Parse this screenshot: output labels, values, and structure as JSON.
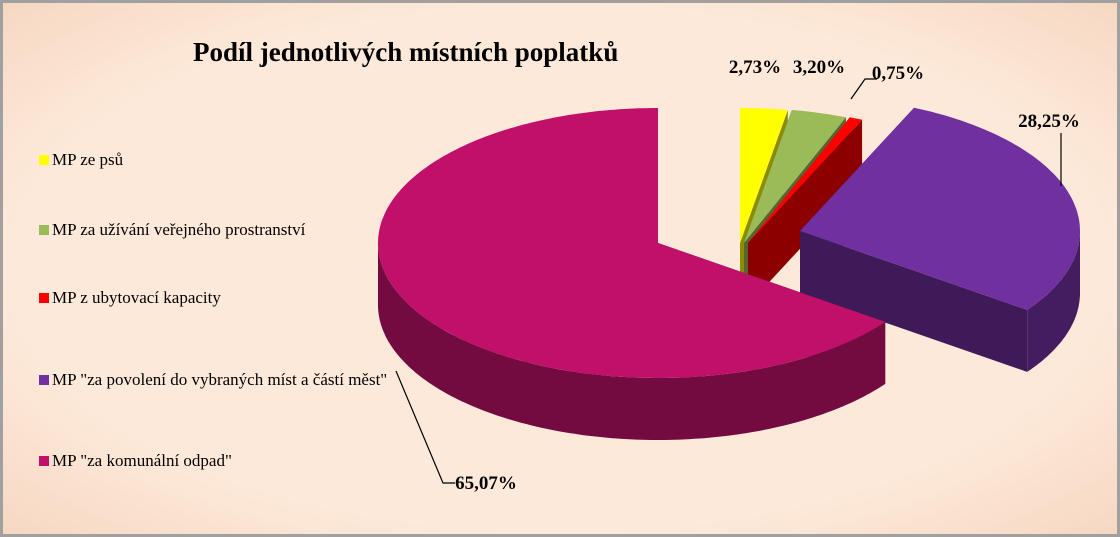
{
  "chart_data": {
    "type": "pie",
    "title": "Podíl jednotlivých místních poplatků",
    "categories": [
      "MP ze psů",
      "MP za užívání veřejného prostranství",
      "MP z ubytovací kapacity",
      "MP \"za povolení do vybraných míst a částí měst\"",
      "MP \"za komunální odpad\""
    ],
    "values": [
      2.73,
      3.2,
      0.75,
      28.25,
      65.07
    ],
    "value_labels": [
      "2,73%",
      "3,20%",
      "0,75%",
      "28,25%",
      "65,07%"
    ],
    "colors": [
      "#ffff00",
      "#9bbb59",
      "#ff0000",
      "#7030a0",
      "#c0106a"
    ]
  }
}
